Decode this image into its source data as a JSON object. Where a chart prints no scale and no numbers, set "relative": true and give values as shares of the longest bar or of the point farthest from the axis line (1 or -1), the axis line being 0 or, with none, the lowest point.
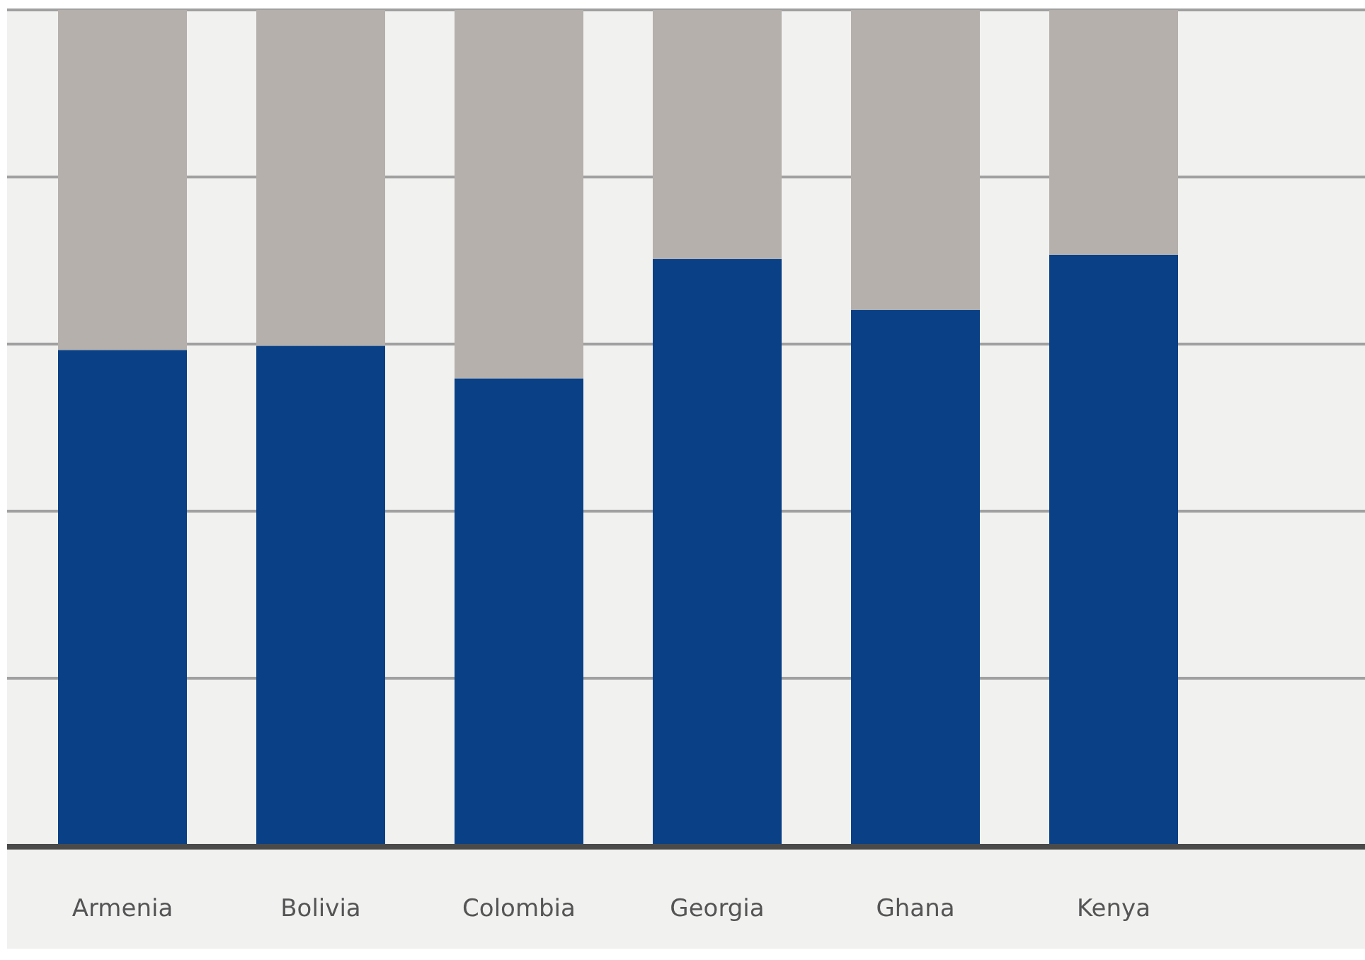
{
  "chart_data": {
    "type": "bar",
    "stacked": true,
    "relative": true,
    "grid": true,
    "categories": [
      "Armenia",
      "Bolivia",
      "Colombia",
      "Georgia",
      "Ghana",
      "Kenya"
    ],
    "series": [
      {
        "color": "#0a4086",
        "values": [
          0.593,
          0.598,
          0.559,
          0.702,
          0.641,
          0.707
        ]
      },
      {
        "color": "#b5b0ac",
        "values": [
          0.407,
          0.402,
          0.441,
          0.298,
          0.359,
          0.293
        ]
      }
    ]
  }
}
